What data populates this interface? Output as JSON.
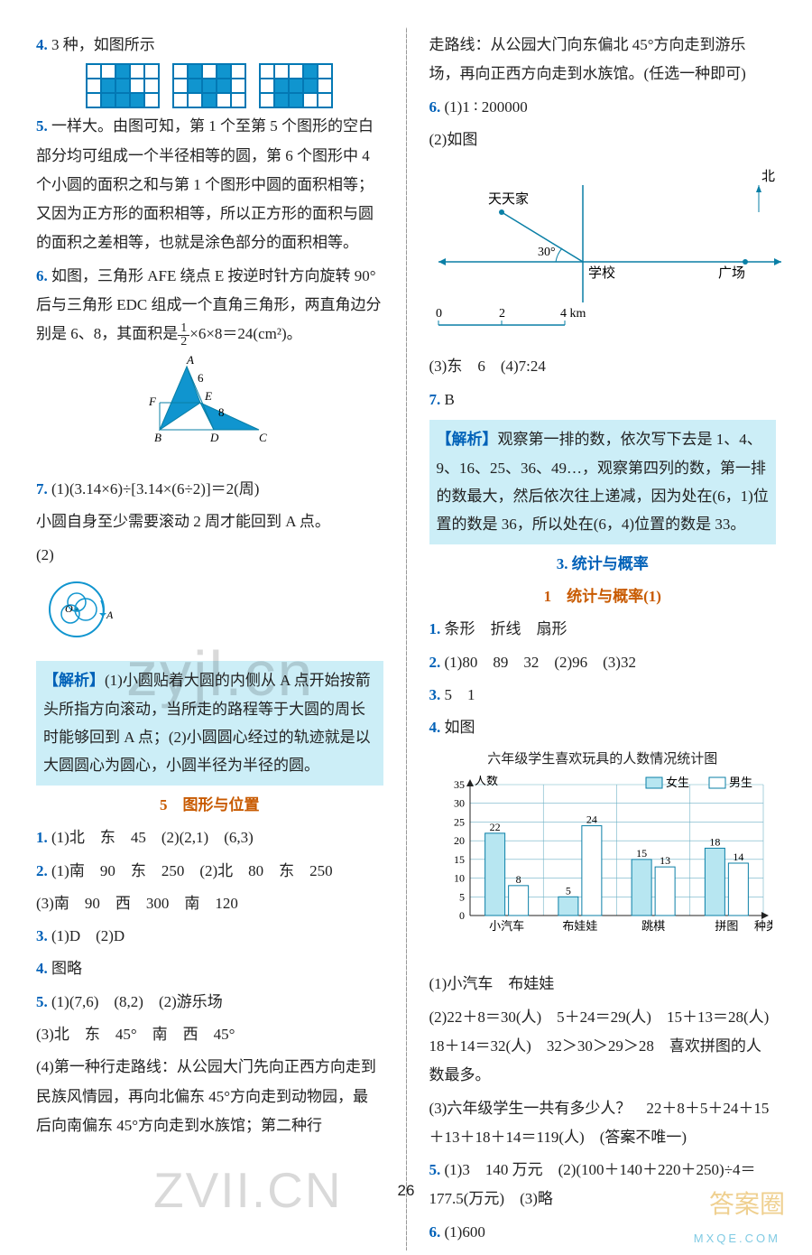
{
  "left": {
    "q4": {
      "num": "4.",
      "text": "3 种，如图所示"
    },
    "grids": [
      [
        [
          0,
          0,
          1,
          0,
          0
        ],
        [
          0,
          1,
          1,
          0,
          0
        ],
        [
          0,
          1,
          1,
          1,
          0
        ]
      ],
      [
        [
          0,
          1,
          0,
          1,
          0
        ],
        [
          0,
          1,
          1,
          1,
          0
        ],
        [
          0,
          0,
          1,
          0,
          0
        ]
      ],
      [
        [
          0,
          0,
          0,
          1,
          0
        ],
        [
          0,
          1,
          1,
          1,
          0
        ],
        [
          0,
          1,
          1,
          0,
          0
        ]
      ]
    ],
    "q5": {
      "num": "5.",
      "text": "一样大。由图可知，第 1 个至第 5 个图形的空白部分均可组成一个半径相等的圆，第 6 个图形中 4 个小圆的面积之和与第 1 个图形中圆的面积相等；又因为正方形的面积相等，所以正方形的面积与圆的面积之差相等，也就是涂色部分的面积相等。"
    },
    "q6": {
      "num": "6.",
      "text_a": "如图，三角形 AFE 绕点 E 按逆时针方向旋转 90°后与三角形 EDC 组成一个直角三角形，两直角边分别是 6、8，其面积是",
      "frac_n": "1",
      "frac_d": "2",
      "text_b": "×6×8＝24(cm²)。"
    },
    "triangle": {
      "labels": [
        "A",
        "F",
        "E",
        "B",
        "D",
        "C"
      ],
      "side_a": "6",
      "side_b": "8"
    },
    "q7": {
      "num": "7.",
      "line1": "(1)(3.14×6)÷[3.14×(6÷2)]＝2(周)",
      "line2": "小圆自身至少需要滚动 2 周才能回到 A 点。",
      "line3": "(2)"
    },
    "circle": {
      "O": "O",
      "A": "A"
    },
    "analysis1": {
      "label": "【解析】",
      "text": "(1)小圆贴着大圆的内侧从 A 点开始按箭头所指方向滚动，当所走的路程等于大圆的周长时能够回到 A 点；(2)小圆圆心经过的轨迹就是以大圆圆心为圆心，小圆半径为半径的圆。"
    },
    "sec5": {
      "title": "5　图形与位置"
    },
    "s5q1": {
      "num": "1.",
      "text": "(1)北　东　45　(2)(2,1)　(6,3)"
    },
    "s5q2": {
      "num": "2.",
      "line1": "(1)南　90　东　250　(2)北　80　东　250",
      "line2": "(3)南　90　西　300　南　120"
    },
    "s5q3": {
      "num": "3.",
      "text": "(1)D　(2)D"
    },
    "s5q4": {
      "num": "4.",
      "text": "图略"
    },
    "s5q5": {
      "num": "5.",
      "line1": "(1)(7,6)　(8,2)　(2)游乐场",
      "line2": "(3)北　东　45°　南　西　45°",
      "line3": "(4)第一种行走路线：从公园大门先向正西方向走到民族风情园，再向北偏东 45°方向走到动物园，最后向南偏东 45°方向走到水族馆；第二种行"
    }
  },
  "right": {
    "cont": "走路线：从公园大门向东偏北 45°方向走到游乐场，再向正西方向走到水族馆。(任选一种即可)",
    "q6": {
      "num": "6.",
      "line1": "(1)1 ∶ 200000",
      "line2": "(2)如图"
    },
    "map": {
      "north": "北",
      "tian": "天天家",
      "angle": "30°",
      "school": "学校",
      "plaza": "广场",
      "scale": [
        "0",
        "2",
        "4 km"
      ]
    },
    "q6b": "(3)东　6　(4)7:24",
    "q7": {
      "num": "7.",
      "text": "B"
    },
    "analysis2": {
      "label": "【解析】",
      "text": "观察第一排的数，依次写下去是 1、4、9、16、25、36、49…，观察第四列的数，第一排的数最大，然后依次往上递减，因为处在(6，1)位置的数是 36，所以处在(6，4)位置的数是 33。"
    },
    "sec3": {
      "title": "3. 统计与概率",
      "sub": "1　统计与概率(1)"
    },
    "s3q1": {
      "num": "1.",
      "text": "条形　折线　扇形"
    },
    "s3q2": {
      "num": "2.",
      "text": "(1)80　89　32　(2)96　(3)32"
    },
    "s3q3": {
      "num": "3.",
      "text": "5　1"
    },
    "s3q4": {
      "num": "4.",
      "text": "如图"
    },
    "chart": {
      "title": "六年级学生喜欢玩具的人数情况统计图",
      "ylabel": "人数",
      "xlabel": "种类",
      "legend": [
        "女生",
        "男生"
      ],
      "categories": [
        "小汽车",
        "布娃娃",
        "跳棋",
        "拼图"
      ],
      "yticks": [
        0,
        5,
        10,
        15,
        20,
        25,
        30,
        35
      ],
      "ymax": 35,
      "girls": [
        22,
        5,
        15,
        18
      ],
      "boys": [
        8,
        24,
        13,
        14
      ],
      "colors": {
        "girls": "#b7e6f1",
        "boys": "#ffffff",
        "grid": "#6fb2c6",
        "border": "#0a7fa6"
      }
    },
    "q4a": "(1)小汽车　布娃娃",
    "q4b": "(2)22＋8＝30(人)　5＋24＝29(人)　15＋13＝28(人)　18＋14＝32(人)　32＞30＞29＞28　喜欢拼图的人数最多。",
    "q4c": "(3)六年级学生一共有多少人？　22＋8＋5＋24＋15＋13＋18＋14＝119(人)　(答案不唯一)",
    "s3q5": {
      "num": "5.",
      "text": "(1)3　140 万元　(2)(100＋140＋220＋250)÷4＝177.5(万元)　(3)略"
    },
    "s3q6": {
      "num": "6.",
      "text": "(1)600"
    }
  },
  "pageNum": "26"
}
